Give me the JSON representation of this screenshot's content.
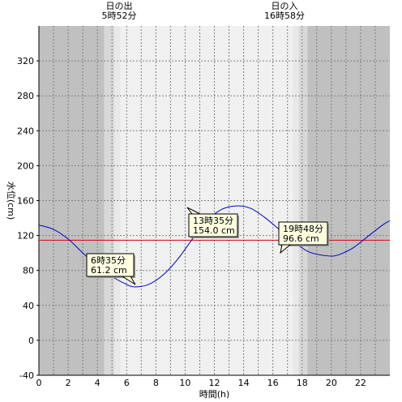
{
  "sunrise": {
    "label": "日の出",
    "time": "5時52分"
  },
  "sunset": {
    "label": "日の入",
    "time": "16時58分"
  },
  "chart_data": {
    "type": "line",
    "xlabel": "時間(h)",
    "ylabel": "水位(cm)",
    "xlim": [
      0,
      24
    ],
    "ylim": [
      -40,
      360
    ],
    "x_ticks": [
      0,
      2,
      4,
      6,
      8,
      10,
      12,
      14,
      16,
      18,
      20,
      22
    ],
    "y_ticks": [
      -40,
      0,
      40,
      80,
      120,
      160,
      200,
      240,
      280,
      320
    ],
    "reference_line": {
      "y": 114.6,
      "color": "#e00000"
    },
    "series": [
      {
        "color": "#0000cc",
        "x": [
          0,
          1,
          2,
          3,
          4,
          5,
          6,
          6.58,
          7.5,
          8.5,
          9.5,
          10.5,
          11.5,
          12.5,
          13.58,
          14.5,
          15.5,
          16.5,
          17.5,
          18.5,
          19.8,
          20.5,
          21.5,
          22.5,
          23.5,
          24
        ],
        "y": [
          132,
          127,
          116,
          100,
          85,
          73,
          64,
          61.2,
          64,
          75,
          93,
          116,
          137,
          150,
          154,
          151,
          140,
          126,
          112,
          101,
          96.6,
          98,
          106,
          119,
          132,
          137
        ]
      }
    ],
    "annotations": [
      {
        "label": "6時35分",
        "value": "61.2 cm",
        "x": 6.58,
        "y": 61.2
      },
      {
        "label": "13時35分",
        "value": "154.0 cm",
        "x": 13.58,
        "y": 154.0
      },
      {
        "label": "19時48分",
        "value": "96.6 cm",
        "x": 19.8,
        "y": 96.6
      }
    ],
    "shading": {
      "night_color": "#c0c0c0",
      "twilight_color": "#d8d8d8",
      "twilight2_color": "#e8e8e8",
      "day_color": "#f0f0f0",
      "sunrise_h": 5.87,
      "sunset_h": 16.97
    }
  }
}
